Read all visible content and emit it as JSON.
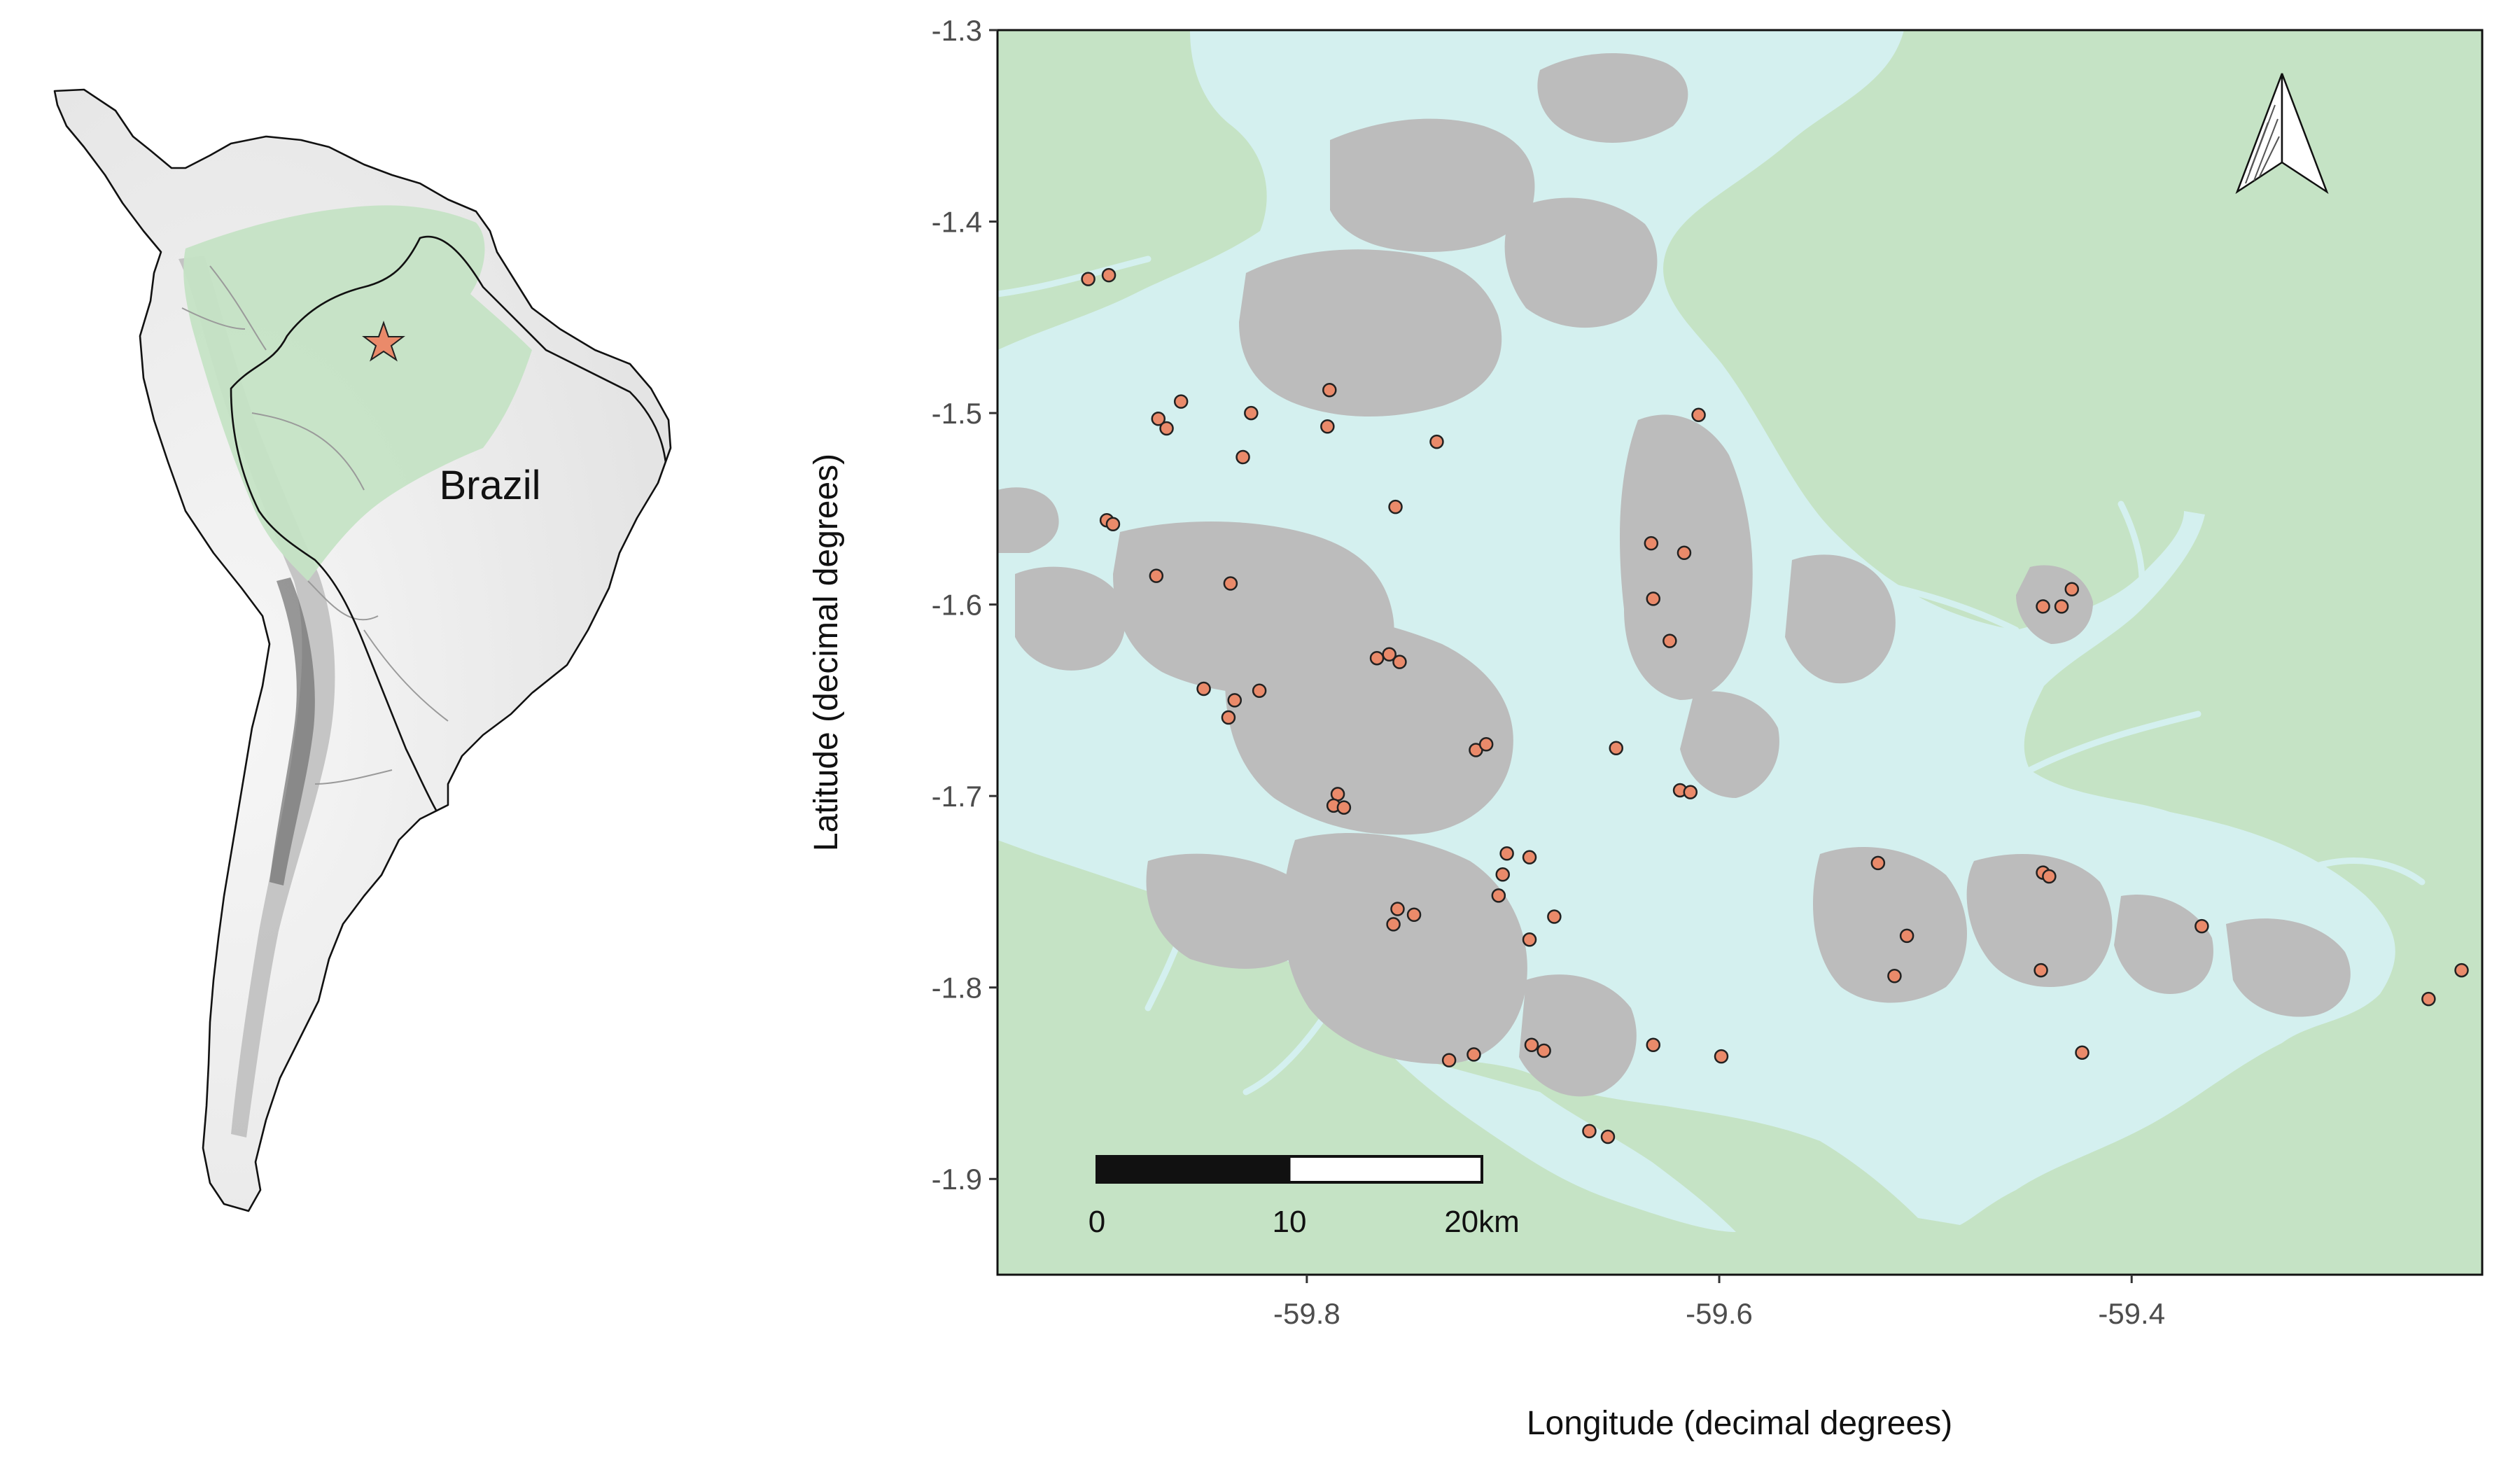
{
  "inset": {
    "country_label": "Brazil",
    "marker_icon": "star-icon",
    "colors": {
      "land": "#ececec",
      "relief": "#9a9a9a",
      "amazon": "#c5e3c5",
      "borders": "#111111",
      "marker": "#ea8a6a"
    }
  },
  "main_map": {
    "ylabel": "Latitude (decimal degrees)",
    "xlabel": "Longitude (decimal degrees)",
    "north_arrow_icon": "north-arrow-icon",
    "scale_bar": {
      "labels": [
        "0",
        "10",
        "20km"
      ],
      "km": [
        0,
        10,
        20
      ]
    },
    "colors": {
      "land": "#c5e3c5",
      "water": "#d4f0ef",
      "islands": "#bcbcbc",
      "points": "#ea8a6a",
      "point_stroke": "#222222"
    }
  },
  "chart_data": {
    "type": "scatter",
    "xlabel": "Longitude (decimal degrees)",
    "ylabel": "Latitude (decimal degrees)",
    "xlim": [
      -59.95,
      -59.23
    ],
    "ylim": [
      -1.95,
      -1.3
    ],
    "xticks": [
      -59.8,
      -59.6,
      -59.4
    ],
    "xtick_labels": [
      "-59.8",
      "-59.6",
      "-59.4"
    ],
    "yticks": [
      -1.3,
      -1.4,
      -1.5,
      -1.6,
      -1.7,
      -1.8,
      -1.9
    ],
    "ytick_labels": [
      "-1.3",
      "-1.4",
      "-1.5",
      "-1.6",
      "-1.7",
      "-1.8",
      "-1.9"
    ],
    "points": [
      {
        "x": -59.906,
        "y": -1.43
      },
      {
        "x": -59.896,
        "y": -1.428
      },
      {
        "x": -59.861,
        "y": -1.494
      },
      {
        "x": -59.872,
        "y": -1.503
      },
      {
        "x": -59.868,
        "y": -1.508
      },
      {
        "x": -59.827,
        "y": -1.5
      },
      {
        "x": -59.789,
        "y": -1.488
      },
      {
        "x": -59.79,
        "y": -1.507
      },
      {
        "x": -59.831,
        "y": -1.523
      },
      {
        "x": -59.737,
        "y": -1.515
      },
      {
        "x": -59.757,
        "y": -1.549
      },
      {
        "x": -59.61,
        "y": -1.501
      },
      {
        "x": -59.897,
        "y": -1.556
      },
      {
        "x": -59.894,
        "y": -1.558
      },
      {
        "x": -59.873,
        "y": -1.585
      },
      {
        "x": -59.837,
        "y": -1.589
      },
      {
        "x": -59.633,
        "y": -1.568
      },
      {
        "x": -59.617,
        "y": -1.573
      },
      {
        "x": -59.632,
        "y": -1.597
      },
      {
        "x": -59.624,
        "y": -1.619
      },
      {
        "x": -59.443,
        "y": -1.601
      },
      {
        "x": -59.434,
        "y": -1.601
      },
      {
        "x": -59.429,
        "y": -1.592
      },
      {
        "x": -59.85,
        "y": -1.644
      },
      {
        "x": -59.835,
        "y": -1.65
      },
      {
        "x": -59.823,
        "y": -1.645
      },
      {
        "x": -59.838,
        "y": -1.659
      },
      {
        "x": -59.766,
        "y": -1.628
      },
      {
        "x": -59.76,
        "y": -1.626
      },
      {
        "x": -59.755,
        "y": -1.63
      },
      {
        "x": -59.718,
        "y": -1.676
      },
      {
        "x": -59.713,
        "y": -1.673
      },
      {
        "x": -59.65,
        "y": -1.675
      },
      {
        "x": -59.619,
        "y": -1.697
      },
      {
        "x": -59.614,
        "y": -1.698
      },
      {
        "x": -59.785,
        "y": -1.699
      },
      {
        "x": -59.787,
        "y": -1.705
      },
      {
        "x": -59.782,
        "y": -1.706
      },
      {
        "x": -59.703,
        "y": -1.73
      },
      {
        "x": -59.692,
        "y": -1.732
      },
      {
        "x": -59.705,
        "y": -1.741
      },
      {
        "x": -59.707,
        "y": -1.752
      },
      {
        "x": -59.756,
        "y": -1.759
      },
      {
        "x": -59.748,
        "y": -1.762
      },
      {
        "x": -59.758,
        "y": -1.767
      },
      {
        "x": -59.68,
        "y": -1.763
      },
      {
        "x": -59.692,
        "y": -1.775
      },
      {
        "x": -59.523,
        "y": -1.735
      },
      {
        "x": -59.509,
        "y": -1.773
      },
      {
        "x": -59.515,
        "y": -1.794
      },
      {
        "x": -59.443,
        "y": -1.74
      },
      {
        "x": -59.44,
        "y": -1.742
      },
      {
        "x": -59.444,
        "y": -1.791
      },
      {
        "x": -59.366,
        "y": -1.768
      },
      {
        "x": -59.731,
        "y": -1.838
      },
      {
        "x": -59.719,
        "y": -1.835
      },
      {
        "x": -59.691,
        "y": -1.83
      },
      {
        "x": -59.685,
        "y": -1.833
      },
      {
        "x": -59.632,
        "y": -1.83
      },
      {
        "x": -59.599,
        "y": -1.836
      },
      {
        "x": -59.424,
        "y": -1.834
      },
      {
        "x": -59.256,
        "y": -1.806
      },
      {
        "x": -59.24,
        "y": -1.791
      },
      {
        "x": -59.663,
        "y": -1.875
      },
      {
        "x": -59.654,
        "y": -1.878
      }
    ]
  }
}
